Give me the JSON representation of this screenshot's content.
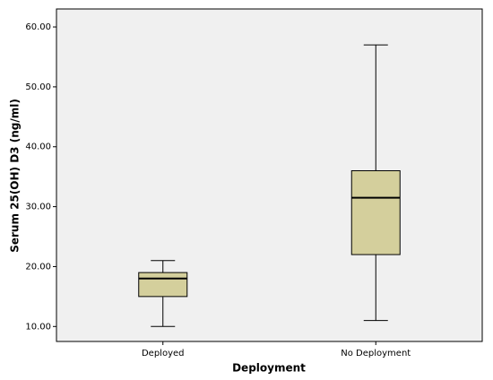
{
  "chart_data": {
    "type": "box",
    "x_label": "Deployment",
    "y_label": "Serum 25(OH) D3 (ng/ml)",
    "categories": [
      "Deployed",
      "No Deployment"
    ],
    "boxes": [
      {
        "min": 10,
        "q1": 15,
        "median": 18,
        "q3": 19,
        "max": 21
      },
      {
        "min": 11,
        "q1": 22,
        "median": 31.5,
        "q3": 36,
        "max": 57
      }
    ],
    "color": "#d4cf9c",
    "ylim": [
      7.5,
      63
    ],
    "yticks": [
      {
        "value": 10,
        "label": "10.00"
      },
      {
        "value": 20,
        "label": "20.00"
      },
      {
        "value": 30,
        "label": "30.00"
      },
      {
        "value": 40,
        "label": "40.00"
      },
      {
        "value": 50,
        "label": "50.00"
      },
      {
        "value": 60,
        "label": "60.00"
      }
    ]
  }
}
